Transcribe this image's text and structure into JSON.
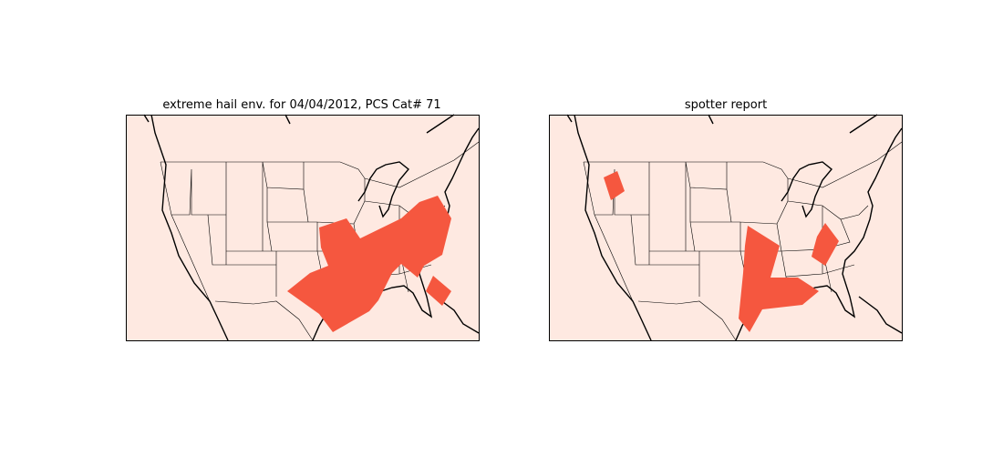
{
  "panels": [
    {
      "title": "extreme hail env. for 04/04/2012, PCS Cat# 71"
    },
    {
      "title": "spotter report"
    }
  ]
}
